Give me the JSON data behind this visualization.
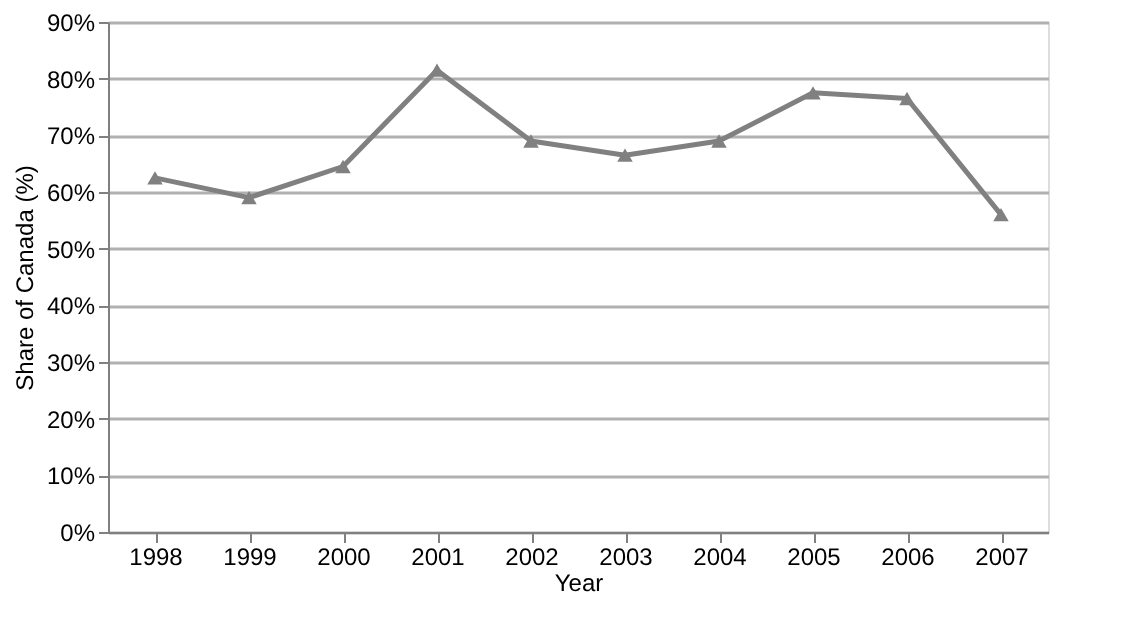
{
  "chart_data": {
    "type": "line",
    "xlabel": "Year",
    "ylabel": "Share of Canada (%)",
    "categories": [
      "1998",
      "1999",
      "2000",
      "2001",
      "2002",
      "2003",
      "2004",
      "2005",
      "2006",
      "2007"
    ],
    "series": [
      {
        "color": "#808080",
        "values": [
          62.5,
          59,
          64.5,
          81.5,
          69,
          66.5,
          69,
          77.5,
          76.5,
          56
        ]
      }
    ],
    "ylim": [
      0,
      90
    ],
    "yticks": [
      {
        "value": 0,
        "label": "0%"
      },
      {
        "value": 10,
        "label": "10%"
      },
      {
        "value": 20,
        "label": "20%"
      },
      {
        "value": 30,
        "label": "30%"
      },
      {
        "value": 40,
        "label": "40%"
      },
      {
        "value": 50,
        "label": "50%"
      },
      {
        "value": 60,
        "label": "60%"
      },
      {
        "value": 70,
        "label": "70%"
      },
      {
        "value": 80,
        "label": "80%"
      },
      {
        "value": 90,
        "label": "90%"
      }
    ],
    "grid": "y",
    "marker": "triangle",
    "line_style": "solid"
  }
}
